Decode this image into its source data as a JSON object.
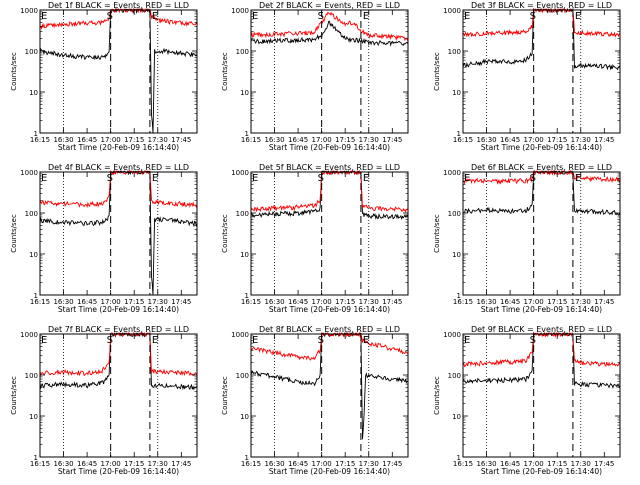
{
  "figure": {
    "xtick_labels": [
      "16:15",
      "16:30",
      "16:45",
      "17:00",
      "17:15",
      "17:30",
      "17:45"
    ],
    "ytick_labels": [
      "1",
      "10",
      "100",
      "1000"
    ],
    "xlabel": "Start Time (20-Feb-09 16:14:40)",
    "ylabel": "Counts/sec",
    "marker_E": "E",
    "marker_S": "S",
    "colors": {
      "events": "#000000",
      "lld": "#ff0000",
      "axes": "#000000"
    }
  },
  "chart_data": [
    {
      "type": "line",
      "title": "Det 1f BLACK = Events, RED = LLD",
      "xlabel": "Start Time (20-Feb-09 16:14:40)",
      "ylabel": "Counts/sec",
      "x_range_min": [
        0,
        100
      ],
      "y_range": [
        1,
        1000
      ],
      "y_scale": "log",
      "markers": {
        "dotted_min": [
          15,
          75
        ],
        "dashed_min": [
          45,
          70
        ]
      },
      "series": [
        {
          "name": "Events",
          "values": [
            [
              0,
              100
            ],
            [
              15,
              80
            ],
            [
              30,
              70
            ],
            [
              40,
              70
            ],
            [
              44,
              95
            ],
            [
              45,
              1000
            ],
            [
              68,
              1000
            ],
            [
              70,
              1000
            ],
            [
              71,
              3
            ],
            [
              72,
              1
            ],
            [
              73,
              100
            ],
            [
              80,
              100
            ],
            [
              100,
              80
            ]
          ]
        },
        {
          "name": "LLD",
          "values": [
            [
              0,
              400
            ],
            [
              15,
              450
            ],
            [
              30,
              480
            ],
            [
              40,
              500
            ],
            [
              44,
              600
            ],
            [
              45,
              1000
            ],
            [
              70,
              1000
            ],
            [
              71,
              700
            ],
            [
              75,
              550
            ],
            [
              100,
              450
            ]
          ]
        }
      ]
    },
    {
      "type": "line",
      "title": "Det 2f BLACK = Events, RED = LLD",
      "xlabel": "Start Time (20-Feb-09 16:14:40)",
      "ylabel": "Counts/sec",
      "x_range_min": [
        0,
        100
      ],
      "y_range": [
        1,
        1000
      ],
      "y_scale": "log",
      "markers": {
        "dotted_min": [
          15,
          75
        ],
        "dashed_min": [
          45,
          70
        ]
      },
      "series": [
        {
          "name": "Events",
          "values": [
            [
              0,
              170
            ],
            [
              20,
              180
            ],
            [
              40,
              190
            ],
            [
              45,
              250
            ],
            [
              50,
              500
            ],
            [
              55,
              300
            ],
            [
              60,
              200
            ],
            [
              70,
              180
            ],
            [
              75,
              160
            ],
            [
              100,
              150
            ]
          ]
        },
        {
          "name": "LLD",
          "values": [
            [
              0,
              250
            ],
            [
              20,
              260
            ],
            [
              40,
              280
            ],
            [
              45,
              500
            ],
            [
              50,
              900
            ],
            [
              55,
              600
            ],
            [
              60,
              450
            ],
            [
              65,
              500
            ],
            [
              70,
              300
            ],
            [
              75,
              250
            ],
            [
              100,
              200
            ]
          ]
        }
      ]
    },
    {
      "type": "line",
      "title": "Det 3f BLACK = Events, RED = LLD",
      "xlabel": "Start Time (20-Feb-09 16:14:40)",
      "ylabel": "Counts/sec",
      "x_range_min": [
        0,
        100
      ],
      "y_range": [
        1,
        1000
      ],
      "y_scale": "log",
      "markers": {
        "dotted_min": [
          15,
          75
        ],
        "dashed_min": [
          45,
          70
        ]
      },
      "series": [
        {
          "name": "Events",
          "values": [
            [
              0,
              45
            ],
            [
              15,
              55
            ],
            [
              30,
              55
            ],
            [
              40,
              60
            ],
            [
              44,
              90
            ],
            [
              45,
              1000
            ],
            [
              70,
              1000
            ],
            [
              71,
              40
            ],
            [
              75,
              45
            ],
            [
              100,
              40
            ]
          ]
        },
        {
          "name": "LLD",
          "values": [
            [
              0,
              250
            ],
            [
              15,
              270
            ],
            [
              30,
              280
            ],
            [
              40,
              300
            ],
            [
              44,
              400
            ],
            [
              45,
              1000
            ],
            [
              70,
              1000
            ],
            [
              71,
              300
            ],
            [
              75,
              280
            ],
            [
              100,
              250
            ]
          ]
        }
      ]
    },
    {
      "type": "line",
      "title": "Det 4f BLACK = Events, RED = LLD",
      "xlabel": "Start Time (20-Feb-09 16:14:40)",
      "ylabel": "Counts/sec",
      "x_range_min": [
        0,
        100
      ],
      "y_range": [
        1,
        1000
      ],
      "y_scale": "log",
      "markers": {
        "dotted_min": [
          15,
          75
        ],
        "dashed_min": [
          45,
          70
        ]
      },
      "series": [
        {
          "name": "Events",
          "values": [
            [
              0,
              65
            ],
            [
              15,
              60
            ],
            [
              30,
              55
            ],
            [
              40,
              60
            ],
            [
              44,
              80
            ],
            [
              45,
              1000
            ],
            [
              70,
              1000
            ],
            [
              71,
              3
            ],
            [
              72,
              1
            ],
            [
              73,
              70
            ],
            [
              80,
              70
            ],
            [
              100,
              55
            ]
          ]
        },
        {
          "name": "LLD",
          "values": [
            [
              0,
              180
            ],
            [
              15,
              170
            ],
            [
              30,
              160
            ],
            [
              40,
              170
            ],
            [
              44,
              250
            ],
            [
              45,
              1000
            ],
            [
              70,
              1000
            ],
            [
              71,
              200
            ],
            [
              75,
              180
            ],
            [
              100,
              160
            ]
          ]
        }
      ]
    },
    {
      "type": "line",
      "title": "Det 5f BLACK = Events, RED = LLD",
      "xlabel": "Start Time (20-Feb-09 16:14:40)",
      "ylabel": "Counts/sec",
      "x_range_min": [
        0,
        100
      ],
      "y_range": [
        1,
        1000
      ],
      "y_scale": "log",
      "markers": {
        "dotted_min": [
          15,
          75
        ],
        "dashed_min": [
          45,
          70
        ]
      },
      "series": [
        {
          "name": "Events",
          "values": [
            [
              0,
              90
            ],
            [
              15,
              95
            ],
            [
              30,
              100
            ],
            [
              40,
              110
            ],
            [
              44,
              130
            ],
            [
              45,
              1000
            ],
            [
              70,
              1000
            ],
            [
              71,
              90
            ],
            [
              75,
              85
            ],
            [
              100,
              80
            ]
          ]
        },
        {
          "name": "LLD",
          "values": [
            [
              0,
              120
            ],
            [
              15,
              130
            ],
            [
              30,
              140
            ],
            [
              40,
              150
            ],
            [
              44,
              200
            ],
            [
              45,
              1000
            ],
            [
              70,
              1000
            ],
            [
              71,
              150
            ],
            [
              75,
              130
            ],
            [
              100,
              120
            ]
          ]
        }
      ]
    },
    {
      "type": "line",
      "title": "Det 6f BLACK = Events, RED = LLD",
      "xlabel": "Start Time (20-Feb-09 16:14:40)",
      "ylabel": "Counts/sec",
      "x_range_min": [
        0,
        100
      ],
      "y_range": [
        1,
        1000
      ],
      "y_scale": "log",
      "markers": {
        "dotted_min": [
          15,
          75
        ],
        "dashed_min": [
          45,
          70
        ]
      },
      "series": [
        {
          "name": "Events",
          "values": [
            [
              0,
              110
            ],
            [
              15,
              120
            ],
            [
              30,
              110
            ],
            [
              40,
              115
            ],
            [
              44,
              150
            ],
            [
              45,
              1000
            ],
            [
              70,
              1000
            ],
            [
              71,
              120
            ],
            [
              75,
              115
            ],
            [
              100,
              100
            ]
          ]
        },
        {
          "name": "LLD",
          "values": [
            [
              0,
              600
            ],
            [
              15,
              620
            ],
            [
              30,
              600
            ],
            [
              40,
              620
            ],
            [
              44,
              700
            ],
            [
              45,
              1000
            ],
            [
              70,
              1000
            ],
            [
              71,
              750
            ],
            [
              75,
              700
            ],
            [
              100,
              650
            ]
          ]
        }
      ]
    },
    {
      "type": "line",
      "title": "Det 7f BLACK = Events, RED = LLD",
      "xlabel": "Start Time (20-Feb-09 16:14:40)",
      "ylabel": "Counts/sec",
      "x_range_min": [
        0,
        100
      ],
      "y_range": [
        1,
        1000
      ],
      "y_scale": "log",
      "markers": {
        "dotted_min": [
          15,
          75
        ],
        "dashed_min": [
          45,
          70
        ]
      },
      "series": [
        {
          "name": "Events",
          "values": [
            [
              0,
              55
            ],
            [
              15,
              60
            ],
            [
              30,
              55
            ],
            [
              40,
              65
            ],
            [
              44,
              100
            ],
            [
              45,
              1000
            ],
            [
              70,
              1000
            ],
            [
              71,
              50
            ],
            [
              75,
              55
            ],
            [
              100,
              50
            ]
          ]
        },
        {
          "name": "LLD",
          "values": [
            [
              0,
              110
            ],
            [
              15,
              120
            ],
            [
              30,
              110
            ],
            [
              40,
              130
            ],
            [
              44,
              200
            ],
            [
              45,
              1000
            ],
            [
              70,
              1000
            ],
            [
              71,
              130
            ],
            [
              75,
              120
            ],
            [
              100,
              110
            ]
          ]
        }
      ]
    },
    {
      "type": "line",
      "title": "Det 8f BLACK = Events, RED = LLD",
      "xlabel": "Start Time (20-Feb-09 16:14:40)",
      "ylabel": "Counts/sec",
      "x_range_min": [
        0,
        100
      ],
      "y_range": [
        1,
        1000
      ],
      "y_scale": "log",
      "markers": {
        "dotted_min": [
          15,
          75
        ],
        "dashed_min": [
          45,
          70
        ]
      },
      "series": [
        {
          "name": "Events",
          "values": [
            [
              0,
              120
            ],
            [
              15,
              90
            ],
            [
              30,
              70
            ],
            [
              40,
              60
            ],
            [
              44,
              90
            ],
            [
              45,
              1000
            ],
            [
              70,
              1000
            ],
            [
              71,
              3
            ],
            [
              72,
              10
            ],
            [
              73,
              100
            ],
            [
              80,
              90
            ],
            [
              100,
              70
            ]
          ]
        },
        {
          "name": "LLD",
          "values": [
            [
              0,
              450
            ],
            [
              15,
              350
            ],
            [
              30,
              280
            ],
            [
              40,
              250
            ],
            [
              44,
              400
            ],
            [
              45,
              1000
            ],
            [
              70,
              1000
            ],
            [
              71,
              700
            ],
            [
              75,
              600
            ],
            [
              100,
              350
            ]
          ]
        }
      ]
    },
    {
      "type": "line",
      "title": "Det 9f BLACK = Events, RED = LLD",
      "xlabel": "Start Time (20-Feb-09 16:14:40)",
      "ylabel": "Counts/sec",
      "x_range_min": [
        0,
        100
      ],
      "y_range": [
        1,
        1000
      ],
      "y_scale": "log",
      "markers": {
        "dotted_min": [
          15,
          75
        ],
        "dashed_min": [
          45,
          70
        ]
      },
      "series": [
        {
          "name": "Events",
          "values": [
            [
              0,
              70
            ],
            [
              15,
              75
            ],
            [
              30,
              75
            ],
            [
              40,
              80
            ],
            [
              44,
              120
            ],
            [
              45,
              1000
            ],
            [
              70,
              1000
            ],
            [
              71,
              65
            ],
            [
              75,
              60
            ],
            [
              100,
              55
            ]
          ]
        },
        {
          "name": "LLD",
          "values": [
            [
              0,
              180
            ],
            [
              15,
              200
            ],
            [
              30,
              210
            ],
            [
              40,
              220
            ],
            [
              44,
              350
            ],
            [
              45,
              1000
            ],
            [
              70,
              1000
            ],
            [
              71,
              220
            ],
            [
              75,
              200
            ],
            [
              100,
              180
            ]
          ]
        }
      ]
    }
  ]
}
